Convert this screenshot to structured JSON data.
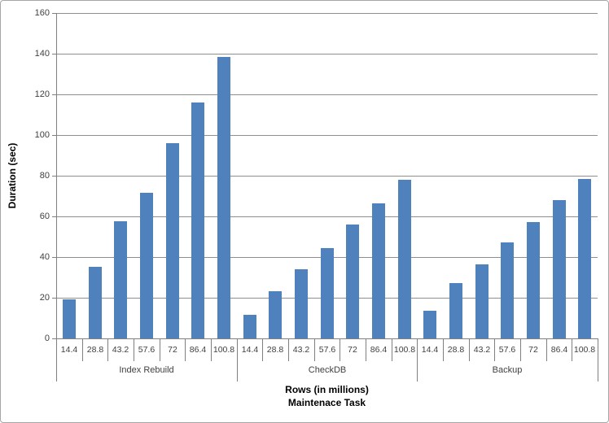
{
  "chart_data": {
    "type": "bar",
    "title": "",
    "ylabel": "Duration (sec)",
    "xlabel_line1": "Rows (in millions)",
    "xlabel_line2": "Maintenace Task",
    "ylim": [
      0,
      160
    ],
    "ytick_step": 20,
    "grid": true,
    "legend": "none",
    "categories": [
      "14.4",
      "28.8",
      "43.2",
      "57.6",
      "72",
      "86.4",
      "100.8"
    ],
    "groups": [
      {
        "name": "Index Rebuild",
        "values": [
          19,
          35,
          57.5,
          71.5,
          96,
          116,
          138.5
        ]
      },
      {
        "name": "CheckDB",
        "values": [
          11.5,
          23,
          34,
          44.5,
          56,
          66.5,
          78
        ]
      },
      {
        "name": "Backup",
        "values": [
          13.5,
          27,
          36.5,
          47,
          57,
          68,
          78.5
        ]
      }
    ],
    "colors": {
      "bar": "#4F81BD",
      "gridline": "#8E8E8E",
      "axis": "#808080",
      "text": "#404040",
      "title": "#000000",
      "frame": "#A6A6A6"
    }
  }
}
